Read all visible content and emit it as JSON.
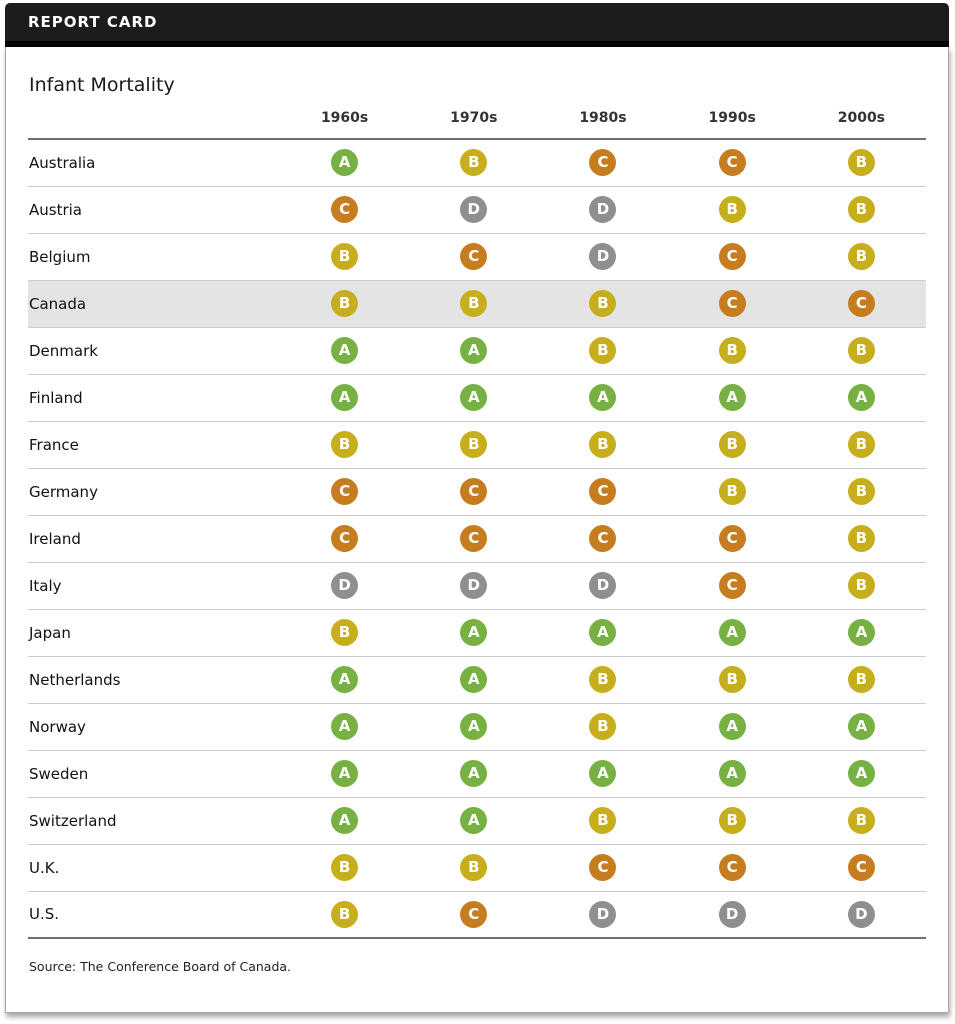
{
  "header": {
    "title": "REPORT CARD"
  },
  "source_note": "Source: The Conference Board of Canada.",
  "highlighted_country": "Canada",
  "grade_colors": {
    "A": "#77b143",
    "B": "#c7ae1d",
    "C": "#c67d1f",
    "D": "#8f8f8f"
  },
  "chart_data": {
    "type": "table",
    "title": "Infant Mortality",
    "columns": [
      "1960s",
      "1970s",
      "1980s",
      "1990s",
      "2000s"
    ],
    "rows": [
      {
        "country": "Australia",
        "grades": [
          "A",
          "B",
          "C",
          "C",
          "B"
        ]
      },
      {
        "country": "Austria",
        "grades": [
          "C",
          "D",
          "D",
          "B",
          "B"
        ]
      },
      {
        "country": "Belgium",
        "grades": [
          "B",
          "C",
          "D",
          "C",
          "B"
        ]
      },
      {
        "country": "Canada",
        "grades": [
          "B",
          "B",
          "B",
          "C",
          "C"
        ]
      },
      {
        "country": "Denmark",
        "grades": [
          "A",
          "A",
          "B",
          "B",
          "B"
        ]
      },
      {
        "country": "Finland",
        "grades": [
          "A",
          "A",
          "A",
          "A",
          "A"
        ]
      },
      {
        "country": "France",
        "grades": [
          "B",
          "B",
          "B",
          "B",
          "B"
        ]
      },
      {
        "country": "Germany",
        "grades": [
          "C",
          "C",
          "C",
          "B",
          "B"
        ]
      },
      {
        "country": "Ireland",
        "grades": [
          "C",
          "C",
          "C",
          "C",
          "B"
        ]
      },
      {
        "country": "Italy",
        "grades": [
          "D",
          "D",
          "D",
          "C",
          "B"
        ]
      },
      {
        "country": "Japan",
        "grades": [
          "B",
          "A",
          "A",
          "A",
          "A"
        ]
      },
      {
        "country": "Netherlands",
        "grades": [
          "A",
          "A",
          "B",
          "B",
          "B"
        ]
      },
      {
        "country": "Norway",
        "grades": [
          "A",
          "A",
          "B",
          "A",
          "A"
        ]
      },
      {
        "country": "Sweden",
        "grades": [
          "A",
          "A",
          "A",
          "A",
          "A"
        ]
      },
      {
        "country": "Switzerland",
        "grades": [
          "A",
          "A",
          "B",
          "B",
          "B"
        ]
      },
      {
        "country": "U.K.",
        "grades": [
          "B",
          "B",
          "C",
          "C",
          "C"
        ]
      },
      {
        "country": "U.S.",
        "grades": [
          "B",
          "C",
          "D",
          "D",
          "D"
        ]
      }
    ]
  }
}
